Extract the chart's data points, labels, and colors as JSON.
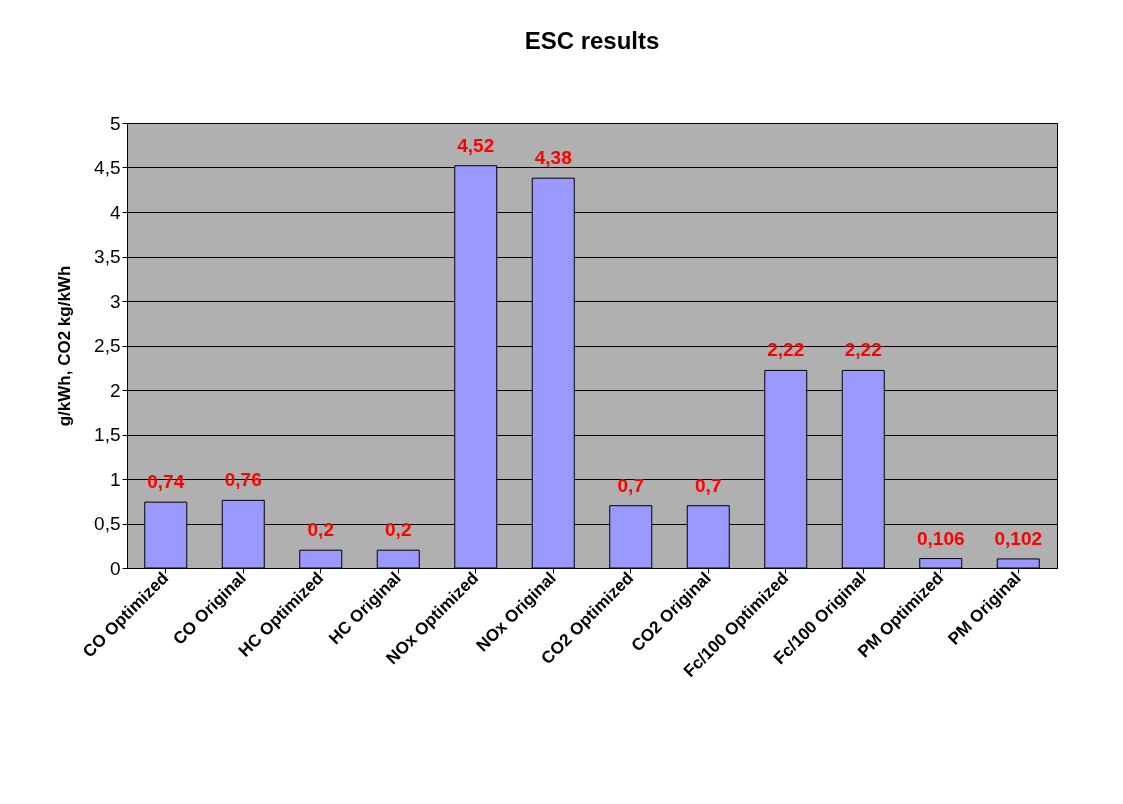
{
  "chart_data": {
    "type": "bar",
    "title": "ESC results",
    "ylabel": "g/kWh,  CO2 kg/kWh",
    "categories": [
      "CO Optimized",
      "CO Original",
      "HC Optimized",
      "HC Original",
      "NOx Optimized",
      "NOx Original",
      "CO2 Optimized",
      "CO2 Original",
      "Fc/100 Optimized",
      "Fc/100 Original",
      "PM Optimized",
      "PM Original"
    ],
    "values": [
      0.74,
      0.76,
      0.2,
      0.2,
      4.52,
      4.38,
      0.7,
      0.7,
      2.22,
      2.22,
      0.106,
      0.102
    ],
    "value_labels": [
      "0,74",
      "0,76",
      "0,2",
      "0,2",
      "4,52",
      "4,38",
      "0,7",
      "0,7",
      "2,22",
      "2,22",
      "0,106",
      "0,102"
    ],
    "color": "#9999ff",
    "ylim": [
      0,
      5
    ],
    "yticks": [
      0,
      {
        "value": 0.5,
        "label": "0,5"
      },
      1,
      {
        "value": 1.5,
        "label": "1,5"
      },
      2,
      {
        "value": 2.5,
        "label": "2,5"
      },
      3,
      {
        "value": 3.5,
        "label": "3,5"
      },
      4,
      {
        "value": 4.5,
        "label": "4,5"
      },
      5
    ],
    "grid": "y"
  }
}
